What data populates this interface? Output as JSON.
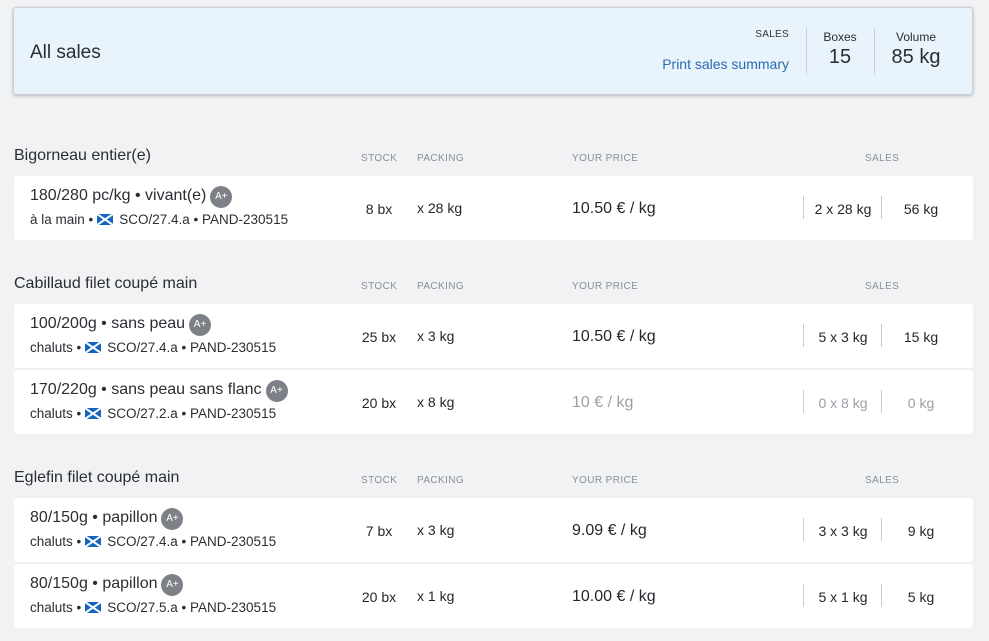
{
  "summary": {
    "title": "All sales",
    "sales_caption": "SALES",
    "print_link": "Print sales summary",
    "boxes_label": "Boxes",
    "boxes_value": "15",
    "volume_label": "Volume",
    "volume_value": "85 kg"
  },
  "columns": {
    "stock": "STOCK",
    "packing": "PACKING",
    "price": "YOUR PRICE",
    "sales": "SALES"
  },
  "groups": [
    {
      "title": "Bigorneau entier(e)",
      "rows": [
        {
          "lot": "180/280 pc/kg • vivant(e)",
          "badge": "A+",
          "method": "à la main",
          "zone": "SCO/27.4.a • PAND-230515",
          "stock": "8 bx",
          "packing": "x 28 kg",
          "price": "10.50 € / kg",
          "sales_boxes": "2 x 28 kg",
          "sales_volume": "56 kg"
        }
      ]
    },
    {
      "title": "Cabillaud filet coupé main",
      "rows": [
        {
          "lot": "100/200g • sans peau",
          "badge": "A+",
          "method": "chaluts",
          "zone": "SCO/27.4.a • PAND-230515",
          "stock": "25 bx",
          "packing": "x 3 kg",
          "price": "10.50 € / kg",
          "sales_boxes": "5 x 3 kg",
          "sales_volume": "15 kg"
        },
        {
          "lot": "170/220g • sans peau sans flanc",
          "badge": "A+",
          "method": "chaluts",
          "zone": "SCO/27.2.a • PAND-230515",
          "stock": "20 bx",
          "packing": "x 8 kg",
          "price": "10 € / kg",
          "sales_boxes": "0 x 8 kg",
          "sales_volume": "0 kg"
        }
      ]
    },
    {
      "title": "Eglefin filet coupé main",
      "rows": [
        {
          "lot": "80/150g • papillon",
          "badge": "A+",
          "method": "chaluts",
          "zone": "SCO/27.4.a • PAND-230515",
          "stock": "7 bx",
          "packing": "x 3 kg",
          "price": "9.09 € / kg",
          "sales_boxes": "3 x 3 kg",
          "sales_volume": "9 kg"
        },
        {
          "lot": "80/150g • papillon",
          "badge": "A+",
          "method": "chaluts",
          "zone": "SCO/27.5.a • PAND-230515",
          "stock": "20 bx",
          "packing": "x 1 kg",
          "price": "10.00 € / kg",
          "sales_boxes": "5 x 1 kg",
          "sales_volume": "5 kg"
        }
      ]
    }
  ]
}
